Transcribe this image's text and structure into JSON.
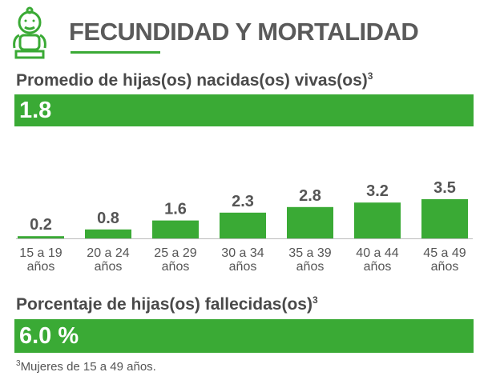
{
  "header": {
    "title": "FECUNDIDAD Y MORTALIDAD"
  },
  "births_heading": {
    "text": "Promedio de hijas(os) nacidas(os) vivas(os)",
    "note_ref": "3"
  },
  "births_value": "1.8",
  "chart_data": {
    "type": "bar",
    "categories": [
      "15 a 19 años",
      "20 a 24 años",
      "25 a 29 años",
      "30 a 34 años",
      "35 a 39 años",
      "40 a 44 años",
      "45 a 49 años"
    ],
    "values": [
      0.2,
      0.8,
      1.6,
      2.3,
      2.8,
      3.2,
      3.5
    ],
    "color": "#3aaa35"
  },
  "deaths_heading": {
    "text": "Porcentaje de hijas(os) fallecidas(os)",
    "note_ref": "3"
  },
  "deaths_value": "6.0 %",
  "footnote": {
    "ref": "3",
    "text": "Mujeres de 15 a 49 años."
  }
}
